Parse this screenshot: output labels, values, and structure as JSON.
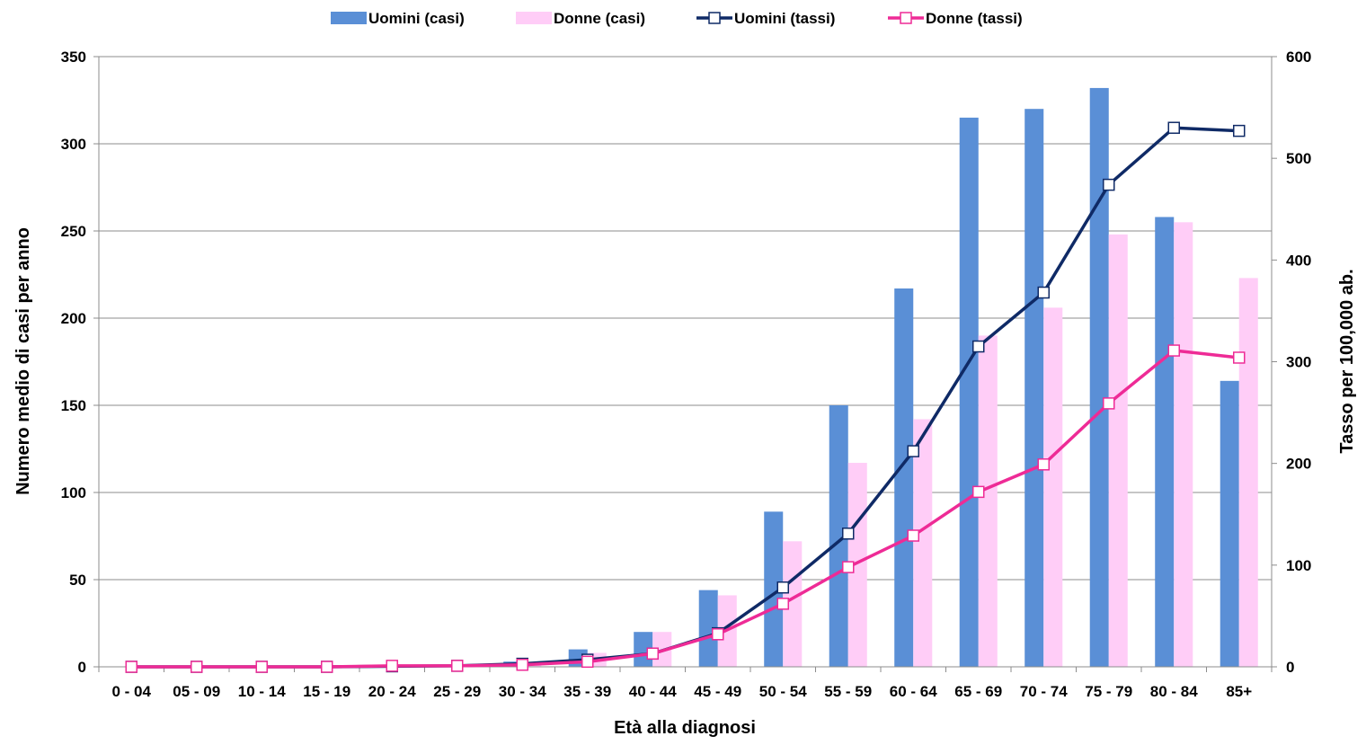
{
  "chart_data": {
    "type": "bar",
    "combo": "bar+line (dual axis)",
    "title": "",
    "xlabel": "Età alla diagnosi",
    "ylabel": "Numero medio di casi per anno",
    "y2label": "Tasso per 100,000 ab.",
    "ylim": [
      0,
      350
    ],
    "y2lim": [
      0,
      600
    ],
    "yticks": [
      0,
      50,
      100,
      150,
      200,
      250,
      300,
      350
    ],
    "y2ticks": [
      0,
      100,
      200,
      300,
      400,
      500,
      600
    ],
    "grid": "horizontal",
    "legend_position": "top",
    "categories": [
      "0 - 04",
      "05 - 09",
      "10 - 14",
      "15 - 19",
      "20 - 24",
      "25 - 29",
      "30 - 34",
      "35 - 39",
      "40 - 44",
      "45 - 49",
      "50 - 54",
      "55 - 59",
      "60 - 64",
      "65 - 69",
      "70 - 74",
      "75 - 79",
      "80 - 84",
      "85+"
    ],
    "series": [
      {
        "name": "Uomini (casi)",
        "kind": "bar",
        "axis": "left",
        "color": "#5a8fd6",
        "values": [
          0,
          0,
          0,
          0,
          1,
          0,
          3,
          10,
          20,
          44,
          89,
          150,
          217,
          315,
          320,
          332,
          258,
          164
        ]
      },
      {
        "name": "Donne (casi)",
        "kind": "bar",
        "axis": "left",
        "color": "#ffcdf7",
        "values": [
          0,
          0,
          0,
          0,
          1,
          0,
          2,
          8,
          20,
          41,
          72,
          117,
          142,
          190,
          206,
          248,
          255,
          223
        ]
      },
      {
        "name": "Uomini (tassi)",
        "kind": "line",
        "axis": "right",
        "color": "#0f2a66",
        "values": [
          0,
          0,
          0,
          0,
          0.5,
          1,
          3,
          7,
          13,
          33,
          78,
          131,
          212,
          315,
          368,
          474,
          530,
          527
        ]
      },
      {
        "name": "Donne (tassi)",
        "kind": "line",
        "axis": "right",
        "color": "#ee2b96",
        "values": [
          0,
          0,
          0,
          0,
          1,
          1,
          2,
          5,
          13,
          32,
          62,
          98,
          129,
          172,
          199,
          259,
          311,
          304
        ]
      }
    ]
  }
}
